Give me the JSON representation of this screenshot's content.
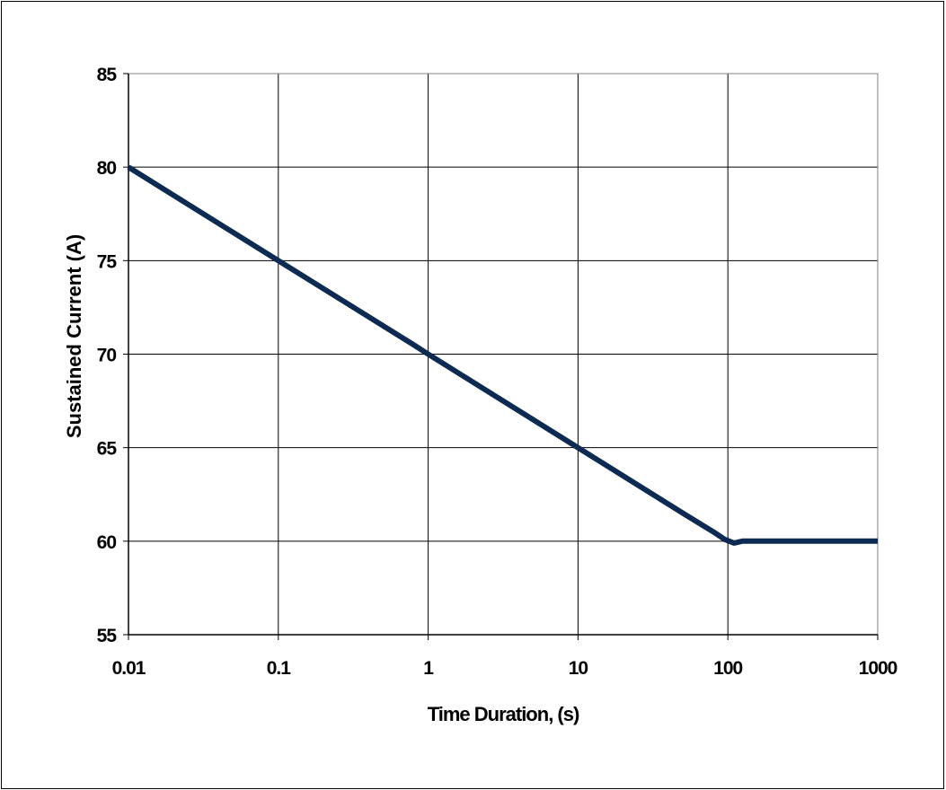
{
  "chart_data": {
    "type": "line",
    "title": "",
    "xlabel": "Time Duration, (s)",
    "ylabel": "Sustained Current (A)",
    "x_scale": "log",
    "xlim": [
      0.01,
      1000
    ],
    "ylim": [
      55,
      85
    ],
    "x_ticks": [
      0.01,
      0.1,
      1,
      10,
      100,
      1000
    ],
    "x_tick_labels": [
      "0.01",
      "0.1",
      "1",
      "10",
      "100",
      "1000"
    ],
    "y_ticks": [
      55,
      60,
      65,
      70,
      75,
      80,
      85
    ],
    "y_tick_labels": [
      "55",
      "60",
      "65",
      "70",
      "75",
      "80",
      "85"
    ],
    "grid": true,
    "legend": "none",
    "series": [
      {
        "color": "#0d2a52",
        "x": [
          0.01,
          0.1,
          0.8,
          1,
          10,
          50,
          80,
          95,
          110,
          125,
          1000
        ],
        "y": [
          80,
          75,
          70.5,
          70,
          65,
          61.5,
          60.5,
          60.1,
          59.9,
          60,
          60
        ]
      }
    ]
  }
}
